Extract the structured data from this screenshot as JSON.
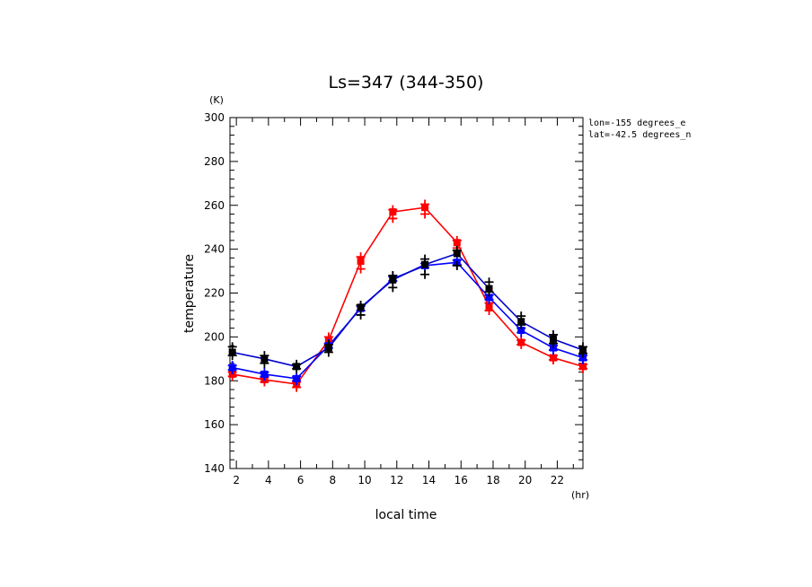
{
  "chart_data": {
    "type": "line",
    "title": "Ls=347 (344-350)",
    "xlabel": "local time",
    "ylabel": "temperature",
    "x_unit": "(hr)",
    "y_unit": "(K)",
    "annotations": [
      "lon=-155 degrees_e",
      "lat=-42.5 degrees_n"
    ],
    "xlim": [
      1.6,
      23.6
    ],
    "ylim": [
      140,
      300
    ],
    "x_ticks": [
      2,
      4,
      6,
      8,
      10,
      12,
      14,
      16,
      18,
      20,
      22
    ],
    "y_ticks": [
      140,
      160,
      180,
      200,
      220,
      240,
      260,
      280,
      300
    ],
    "x": [
      1.75,
      3.75,
      5.75,
      7.75,
      9.75,
      11.75,
      13.75,
      15.75,
      17.75,
      19.75,
      21.75,
      23.6
    ],
    "series": [
      {
        "color": "#ff0000",
        "values": [
          183,
          180.5,
          178.5,
          198.5,
          234.5,
          257,
          259,
          243,
          214,
          197.5,
          190.5,
          186.5
        ],
        "scatter": [
          [
            1.75,
            182
          ],
          [
            1.75,
            184
          ],
          [
            3.75,
            179.5
          ],
          [
            3.75,
            181.5
          ],
          [
            5.75,
            177
          ],
          [
            5.75,
            179.5
          ],
          [
            7.75,
            197
          ],
          [
            7.75,
            200
          ],
          [
            9.75,
            231
          ],
          [
            9.75,
            236.5
          ],
          [
            11.75,
            254
          ],
          [
            11.75,
            258
          ],
          [
            13.75,
            256
          ],
          [
            13.75,
            260.5
          ],
          [
            15.75,
            240.5
          ],
          [
            15.75,
            244
          ],
          [
            17.75,
            212
          ],
          [
            17.75,
            215.5
          ],
          [
            19.75,
            196.5
          ],
          [
            19.75,
            198.5
          ],
          [
            21.75,
            189.5
          ],
          [
            21.75,
            191.5
          ],
          [
            23.6,
            185.5
          ],
          [
            23.6,
            187.5
          ]
        ]
      },
      {
        "color": "#0000ff",
        "values": [
          186,
          183,
          181,
          196,
          213,
          226.5,
          232.5,
          234,
          218,
          203,
          195,
          190.5
        ],
        "scatter": [
          [
            1.75,
            185
          ],
          [
            1.75,
            187
          ],
          [
            3.75,
            182
          ],
          [
            3.75,
            184
          ],
          [
            5.75,
            180
          ],
          [
            5.75,
            182
          ],
          [
            7.75,
            195
          ],
          [
            7.75,
            197
          ],
          [
            9.75,
            212
          ],
          [
            9.75,
            214
          ],
          [
            11.75,
            225.5
          ],
          [
            11.75,
            227.5
          ],
          [
            13.75,
            231.5
          ],
          [
            13.75,
            233.5
          ],
          [
            15.75,
            233
          ],
          [
            15.75,
            235
          ],
          [
            17.75,
            217
          ],
          [
            17.75,
            219
          ],
          [
            19.75,
            202
          ],
          [
            19.75,
            204
          ],
          [
            21.75,
            194
          ],
          [
            21.75,
            196
          ],
          [
            23.6,
            189.5
          ],
          [
            23.6,
            191.5
          ]
        ]
      },
      {
        "color": "#0000cc",
        "values": [
          193,
          190,
          186.5,
          195,
          213.5,
          226,
          233,
          238,
          222,
          207,
          199,
          194
        ],
        "scatter": [
          [
            1.75,
            191.5
          ],
          [
            1.75,
            195.5
          ],
          [
            3.75,
            188
          ],
          [
            3.75,
            191.5
          ],
          [
            5.75,
            185.5
          ],
          [
            5.75,
            187.5
          ],
          [
            7.75,
            193
          ],
          [
            7.75,
            196.5
          ],
          [
            9.75,
            210
          ],
          [
            9.75,
            214.5
          ],
          [
            11.75,
            222.5
          ],
          [
            11.75,
            228
          ],
          [
            13.75,
            228.5
          ],
          [
            13.75,
            235.5
          ],
          [
            15.75,
            232.5
          ],
          [
            15.75,
            239.5
          ],
          [
            17.75,
            220.5
          ],
          [
            17.75,
            225
          ],
          [
            19.75,
            205.5
          ],
          [
            19.75,
            209.5
          ],
          [
            21.75,
            197
          ],
          [
            21.75,
            201
          ],
          [
            23.6,
            192.5
          ],
          [
            23.6,
            195.5
          ]
        ],
        "marker_color": "#000000"
      }
    ]
  }
}
